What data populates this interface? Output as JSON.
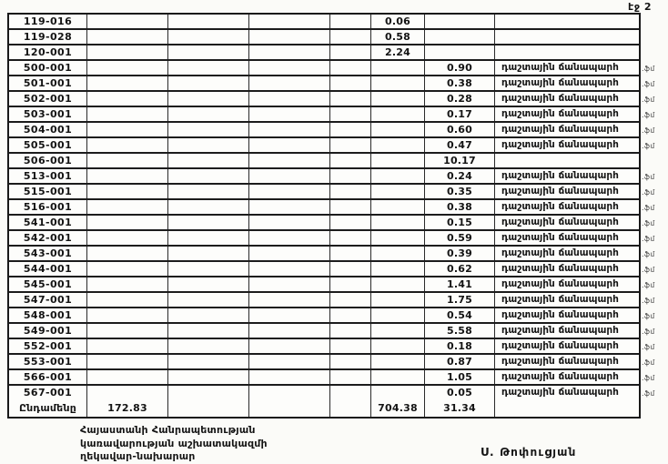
{
  "page": {
    "label_page": "էջ 2"
  },
  "table": {
    "note_text": "դաշտային ճանապարհ",
    "margin_mark": ".ֆմ",
    "rows": [
      {
        "code": "119-016",
        "value_a": "0.06",
        "value_b": "",
        "has_note": false
      },
      {
        "code": "119-028",
        "value_a": "0.58",
        "value_b": "",
        "has_note": false
      },
      {
        "code": "120-001",
        "value_a": "2.24",
        "value_b": "",
        "has_note": false
      },
      {
        "code": "500-001",
        "value_a": "",
        "value_b": "0.90",
        "has_note": true
      },
      {
        "code": "501-001",
        "value_a": "",
        "value_b": "0.38",
        "has_note": true
      },
      {
        "code": "502-001",
        "value_a": "",
        "value_b": "0.28",
        "has_note": true
      },
      {
        "code": "503-001",
        "value_a": "",
        "value_b": "0.17",
        "has_note": true
      },
      {
        "code": "504-001",
        "value_a": "",
        "value_b": "0.60",
        "has_note": true
      },
      {
        "code": "505-001",
        "value_a": "",
        "value_b": "0.47",
        "has_note": true
      },
      {
        "code": "506-001",
        "value_a": "",
        "value_b": "10.17",
        "has_note": false
      },
      {
        "code": "513-001",
        "value_a": "",
        "value_b": "0.24",
        "has_note": true
      },
      {
        "code": "515-001",
        "value_a": "",
        "value_b": "0.35",
        "has_note": true
      },
      {
        "code": "516-001",
        "value_a": "",
        "value_b": "0.38",
        "has_note": true
      },
      {
        "code": "541-001",
        "value_a": "",
        "value_b": "0.15",
        "has_note": true
      },
      {
        "code": "542-001",
        "value_a": "",
        "value_b": "0.59",
        "has_note": true
      },
      {
        "code": "543-001",
        "value_a": "",
        "value_b": "0.39",
        "has_note": true
      },
      {
        "code": "544-001",
        "value_a": "",
        "value_b": "0.62",
        "has_note": true
      },
      {
        "code": "545-001",
        "value_a": "",
        "value_b": "1.41",
        "has_note": true
      },
      {
        "code": "547-001",
        "value_a": "",
        "value_b": "1.75",
        "has_note": true
      },
      {
        "code": "548-001",
        "value_a": "",
        "value_b": "0.54",
        "has_note": true
      },
      {
        "code": "549-001",
        "value_a": "",
        "value_b": "5.58",
        "has_note": true
      },
      {
        "code": "552-001",
        "value_a": "",
        "value_b": "0.18",
        "has_note": true
      },
      {
        "code": "553-001",
        "value_a": "",
        "value_b": "0.87",
        "has_note": true
      },
      {
        "code": "566-001",
        "value_a": "",
        "value_b": "1.05",
        "has_note": true
      },
      {
        "code": "567-001",
        "value_a": "",
        "value_b": "0.05",
        "has_note": true
      }
    ],
    "total": {
      "label": "Ընդամենը",
      "col2": "172.83",
      "value_a": "704.38",
      "value_b": "31.34"
    }
  },
  "footer": {
    "org_line1": "Հայաստանի Հանրապետության",
    "org_line2": "կառավարության աշխատակազմի",
    "org_line3": "ղեկավար-նախարար",
    "signature": "Ս. Թոփուցյան"
  }
}
